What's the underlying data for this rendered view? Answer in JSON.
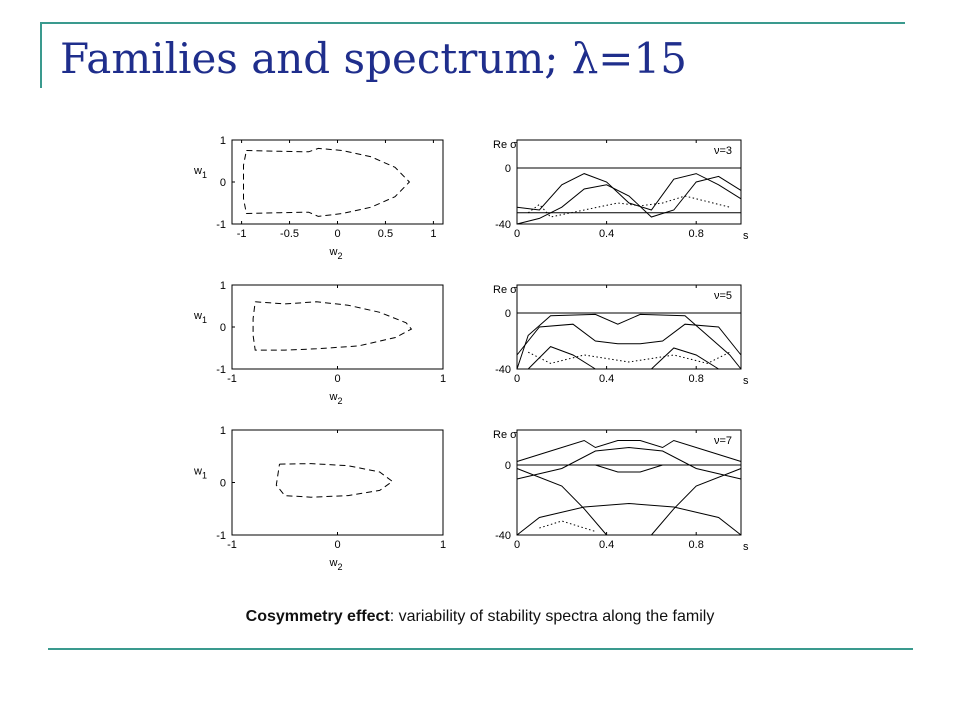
{
  "slide": {
    "title": "Families and spectrum; λ=15",
    "caption_bold": "Cosymmetry effect",
    "caption_rest": ": variability of stability spectra along the family"
  },
  "colors": {
    "title": "#1f2e8c",
    "accent_rule": "#3a9a8e",
    "ink": "#000000"
  },
  "chart_data": [
    {
      "type": "line",
      "panel": "family-1",
      "style": "dashed",
      "xlabel": "w2",
      "ylabel": "w1",
      "xlim": [
        -1.1,
        1.1
      ],
      "ylim": [
        -1,
        1
      ],
      "xticks": [
        "-1",
        "-0.5",
        "0",
        "0.5",
        "1"
      ],
      "yticks": [
        "1",
        "0",
        "-1"
      ],
      "series": [
        {
          "points": [
            [
              -0.95,
              0.75
            ],
            [
              -0.6,
              0.73
            ],
            [
              -0.3,
              0.72
            ],
            [
              -0.2,
              0.8
            ],
            [
              0.05,
              0.75
            ],
            [
              0.35,
              0.6
            ],
            [
              0.6,
              0.35
            ],
            [
              0.75,
              0
            ],
            [
              0.6,
              -0.35
            ],
            [
              0.35,
              -0.6
            ],
            [
              0.05,
              -0.75
            ],
            [
              -0.2,
              -0.82
            ],
            [
              -0.3,
              -0.72
            ],
            [
              -0.6,
              -0.73
            ],
            [
              -0.95,
              -0.75
            ],
            [
              -0.98,
              -0.4
            ],
            [
              -0.98,
              0
            ],
            [
              -0.98,
              0.4
            ],
            [
              -0.95,
              0.75
            ]
          ]
        }
      ]
    },
    {
      "type": "line",
      "panel": "family-2",
      "style": "dashed",
      "xlabel": "w2",
      "ylabel": "w1",
      "xlim": [
        -1,
        1
      ],
      "ylim": [
        -1,
        1
      ],
      "xticks": [
        "-1",
        "0",
        "1"
      ],
      "yticks": [
        "1",
        "0",
        "-1"
      ],
      "series": [
        {
          "points": [
            [
              -0.78,
              0.6
            ],
            [
              -0.5,
              0.55
            ],
            [
              -0.2,
              0.6
            ],
            [
              0.1,
              0.52
            ],
            [
              0.4,
              0.35
            ],
            [
              0.65,
              0.1
            ],
            [
              0.7,
              -0.05
            ],
            [
              0.55,
              -0.25
            ],
            [
              0.2,
              -0.45
            ],
            [
              -0.2,
              -0.52
            ],
            [
              -0.5,
              -0.55
            ],
            [
              -0.78,
              -0.55
            ],
            [
              -0.8,
              -0.2
            ],
            [
              -0.8,
              0.2
            ],
            [
              -0.78,
              0.6
            ]
          ]
        }
      ]
    },
    {
      "type": "line",
      "panel": "family-3",
      "style": "dashed",
      "xlabel": "w2",
      "ylabel": "w1",
      "xlim": [
        -1,
        1
      ],
      "ylim": [
        -1,
        1
      ],
      "xticks": [
        "-1",
        "0",
        "1"
      ],
      "yticks": [
        "1",
        "0",
        "-1"
      ],
      "series": [
        {
          "points": [
            [
              -0.55,
              0.35
            ],
            [
              -0.25,
              0.36
            ],
            [
              0.1,
              0.32
            ],
            [
              0.4,
              0.2
            ],
            [
              0.52,
              0.02
            ],
            [
              0.4,
              -0.15
            ],
            [
              0.1,
              -0.25
            ],
            [
              -0.25,
              -0.28
            ],
            [
              -0.5,
              -0.25
            ],
            [
              -0.58,
              -0.05
            ],
            [
              -0.55,
              0.35
            ]
          ]
        }
      ]
    },
    {
      "type": "line",
      "panel": "spectrum-3",
      "annotation": "ν=3",
      "ylabel": "Re σ",
      "xlabel": "s",
      "xlim": [
        0,
        1
      ],
      "ylim": [
        -40,
        20
      ],
      "xticks": [
        "0",
        "0.4",
        "0.8"
      ],
      "yticks": [
        "0",
        "-40"
      ],
      "series": [
        {
          "style": "solid",
          "points": [
            [
              0,
              0
            ],
            [
              1,
              0
            ]
          ]
        },
        {
          "style": "solid",
          "points": [
            [
              0,
              -32
            ],
            [
              1,
              -32
            ]
          ]
        },
        {
          "style": "solid",
          "points": [
            [
              0,
              -28
            ],
            [
              0.1,
              -30
            ],
            [
              0.2,
              -12
            ],
            [
              0.3,
              -4
            ],
            [
              0.4,
              -10
            ],
            [
              0.5,
              -25
            ],
            [
              0.6,
              -30
            ],
            [
              0.7,
              -8
            ],
            [
              0.8,
              -4
            ],
            [
              0.9,
              -12
            ],
            [
              1,
              -22
            ]
          ]
        },
        {
          "style": "solid",
          "points": [
            [
              0,
              -40
            ],
            [
              0.1,
              -36
            ],
            [
              0.2,
              -28
            ],
            [
              0.3,
              -15
            ],
            [
              0.4,
              -12
            ],
            [
              0.5,
              -20
            ],
            [
              0.6,
              -35
            ],
            [
              0.7,
              -30
            ],
            [
              0.8,
              -10
            ],
            [
              0.9,
              -6
            ],
            [
              1,
              -16
            ]
          ]
        },
        {
          "style": "dotted",
          "points": [
            [
              0.05,
              -32
            ],
            [
              0.1,
              -26
            ],
            [
              0.15,
              -35
            ],
            [
              0.45,
              -25
            ],
            [
              0.55,
              -27
            ],
            [
              0.65,
              -25
            ],
            [
              0.75,
              -20
            ],
            [
              0.95,
              -28
            ]
          ]
        }
      ]
    },
    {
      "type": "line",
      "panel": "spectrum-5",
      "annotation": "ν=5",
      "ylabel": "Re σ",
      "xlabel": "s",
      "xlim": [
        0,
        1
      ],
      "ylim": [
        -40,
        20
      ],
      "xticks": [
        "0",
        "0.4",
        "0.8"
      ],
      "yticks": [
        "0",
        "-40"
      ],
      "series": [
        {
          "style": "solid",
          "points": [
            [
              0,
              0
            ],
            [
              1,
              0
            ]
          ]
        },
        {
          "style": "solid",
          "points": [
            [
              0,
              -40
            ],
            [
              0.05,
              -16
            ],
            [
              0.15,
              -2
            ],
            [
              0.35,
              -1
            ],
            [
              0.45,
              -8
            ],
            [
              0.55,
              -1
            ],
            [
              0.75,
              -2
            ],
            [
              0.85,
              -16
            ],
            [
              0.95,
              -30
            ],
            [
              1,
              -40
            ]
          ]
        },
        {
          "style": "solid",
          "points": [
            [
              0,
              -30
            ],
            [
              0.1,
              -10
            ],
            [
              0.25,
              -8
            ],
            [
              0.35,
              -20
            ],
            [
              0.45,
              -22
            ],
            [
              0.55,
              -22
            ],
            [
              0.65,
              -20
            ],
            [
              0.75,
              -8
            ],
            [
              0.9,
              -10
            ],
            [
              1,
              -30
            ]
          ]
        },
        {
          "style": "solid",
          "points": [
            [
              0.05,
              -40
            ],
            [
              0.15,
              -24
            ],
            [
              0.25,
              -30
            ],
            [
              0.35,
              -40
            ]
          ]
        },
        {
          "style": "solid",
          "points": [
            [
              0.6,
              -40
            ],
            [
              0.7,
              -25
            ],
            [
              0.8,
              -30
            ],
            [
              0.9,
              -40
            ]
          ]
        },
        {
          "style": "dotted",
          "points": [
            [
              0.05,
              -28
            ],
            [
              0.15,
              -36
            ],
            [
              0.3,
              -30
            ],
            [
              0.5,
              -35
            ],
            [
              0.7,
              -30
            ],
            [
              0.85,
              -36
            ],
            [
              0.95,
              -28
            ]
          ]
        }
      ]
    },
    {
      "type": "line",
      "panel": "spectrum-7",
      "annotation": "ν=7",
      "ylabel": "Re σ",
      "xlabel": "s",
      "xlim": [
        0,
        1
      ],
      "ylim": [
        -40,
        20
      ],
      "xticks": [
        "0",
        "0.4",
        "0.8"
      ],
      "yticks": [
        "0",
        "-40"
      ],
      "series": [
        {
          "style": "solid",
          "points": [
            [
              0,
              0
            ],
            [
              1,
              0
            ]
          ]
        },
        {
          "style": "solid",
          "points": [
            [
              0,
              2
            ],
            [
              0.15,
              8
            ],
            [
              0.3,
              14
            ],
            [
              0.35,
              10
            ],
            [
              0.45,
              14
            ],
            [
              0.55,
              14
            ],
            [
              0.65,
              10
            ],
            [
              0.7,
              14
            ],
            [
              0.85,
              8
            ],
            [
              1,
              2
            ]
          ]
        },
        {
          "style": "solid",
          "points": [
            [
              0.35,
              0
            ],
            [
              0.45,
              -4
            ],
            [
              0.55,
              -4
            ],
            [
              0.65,
              0
            ]
          ]
        },
        {
          "style": "solid",
          "points": [
            [
              0,
              -8
            ],
            [
              0.2,
              -2
            ],
            [
              0.35,
              8
            ],
            [
              0.5,
              10
            ],
            [
              0.65,
              8
            ],
            [
              0.8,
              -2
            ],
            [
              1,
              -8
            ]
          ]
        },
        {
          "style": "solid",
          "points": [
            [
              0,
              -2
            ],
            [
              0.2,
              -12
            ],
            [
              0.3,
              -25
            ],
            [
              0.4,
              -40
            ]
          ]
        },
        {
          "style": "solid",
          "points": [
            [
              0.6,
              -40
            ],
            [
              0.7,
              -25
            ],
            [
              0.8,
              -12
            ],
            [
              1,
              -2
            ]
          ]
        },
        {
          "style": "solid",
          "points": [
            [
              0,
              -40
            ],
            [
              0.1,
              -30
            ],
            [
              0.3,
              -24
            ],
            [
              0.5,
              -22
            ],
            [
              0.7,
              -24
            ],
            [
              0.9,
              -30
            ],
            [
              1,
              -40
            ]
          ]
        },
        {
          "style": "dotted",
          "points": [
            [
              0.1,
              -36
            ],
            [
              0.2,
              -32
            ],
            [
              0.35,
              -38
            ]
          ]
        }
      ]
    }
  ]
}
